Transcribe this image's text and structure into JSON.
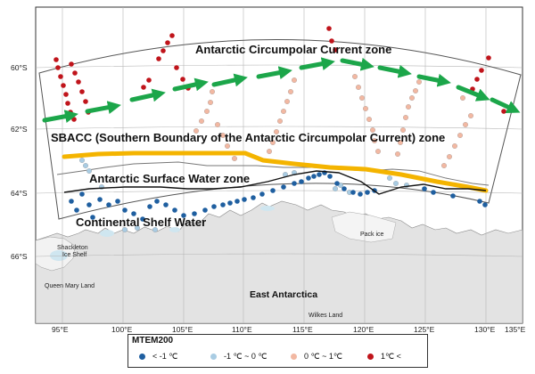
{
  "map": {
    "lat_labels": [
      "60°S",
      "62°S",
      "64°S",
      "66°S"
    ],
    "lon_labels": [
      "95°E",
      "100°E",
      "105°E",
      "110°E",
      "115°E",
      "120°E",
      "125°E",
      "130°E",
      "135°E"
    ],
    "zone_labels": {
      "acc": "Antarctic Circumpolar Current zone",
      "sbacc": "SBACC (Southern Boundary of the Antarctic Circumpolar Current) zone",
      "asw": "Antarctic Surface Water zone",
      "csw": "Continental Shelf Water"
    },
    "place_labels": {
      "shackleton_1": "Shackleton",
      "shackleton_2": "Ice Shelf",
      "queen_mary": "Queen Mary Land",
      "wilkes": "Wilkes Land",
      "pack_ice": "Pack ice",
      "east_antarctica": "East Antarctica"
    }
  },
  "colors": {
    "lt_neg1": "#1f5fa0",
    "neg1_0": "#a9cce3",
    "zero_1": "#f2b8a2",
    "gt_1": "#c0141b",
    "sbacc_line": "#f4b400",
    "arrow": "#1ca64a",
    "land": "#e3e3e3",
    "ocean": "#ffffff"
  },
  "legend": {
    "title": "MTEM200",
    "items": [
      {
        "label": "< -1 ℃",
        "color": "#1f5fa0"
      },
      {
        "label": "-1 ℃ ~ 0 ℃",
        "color": "#a9cce3"
      },
      {
        "label": "0 ℃ ~ 1℃",
        "color": "#f2b8a2"
      },
      {
        "label": "1℃ <",
        "color": "#c0141b"
      }
    ]
  }
}
